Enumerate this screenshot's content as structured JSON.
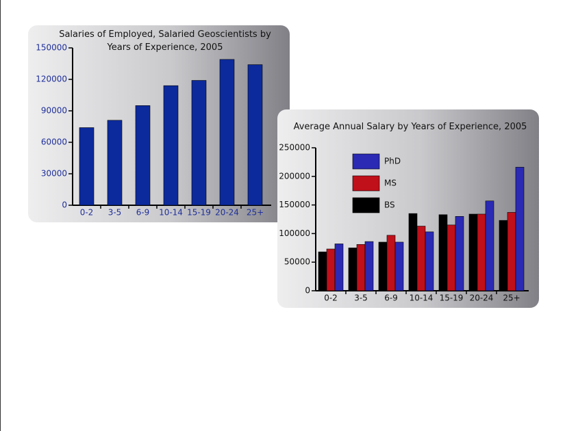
{
  "chart_data": [
    {
      "type": "bar",
      "title": "Salaries of Employed, Salaried Geoscientists by Years of Experience, 2005",
      "categories": [
        "0-2",
        "3-5",
        "6-9",
        "10-14",
        "15-19",
        "20-24",
        "25+"
      ],
      "values": [
        74000,
        81000,
        95000,
        114000,
        119000,
        139000,
        134000
      ],
      "color": "#0c2a9c",
      "label_color": "#1f2f9a",
      "ylim": [
        0,
        150000
      ],
      "yticks": [
        0,
        30000,
        60000,
        90000,
        120000,
        150000
      ]
    },
    {
      "type": "grouped_bar",
      "title": "Average Annual Salary by Years of Experience, 2005",
      "categories": [
        "0-2",
        "3-5",
        "6-9",
        "10-14",
        "15-19",
        "20-24",
        "25+"
      ],
      "series": [
        {
          "name": "BS",
          "color": "#000000",
          "values": [
            68000,
            75000,
            85000,
            135000,
            133000,
            134000,
            123000
          ]
        },
        {
          "name": "MS",
          "color": "#c0101a",
          "values": [
            73000,
            81000,
            97000,
            113000,
            115000,
            134000,
            137000
          ]
        },
        {
          "name": "PhD",
          "color": "#2a2ab4",
          "values": [
            82000,
            86000,
            85000,
            103000,
            130000,
            157000,
            216000
          ]
        }
      ],
      "label_color": "#111111",
      "ylim": [
        0,
        250000
      ],
      "yticks": [
        0,
        50000,
        100000,
        150000,
        200000,
        250000
      ]
    }
  ]
}
